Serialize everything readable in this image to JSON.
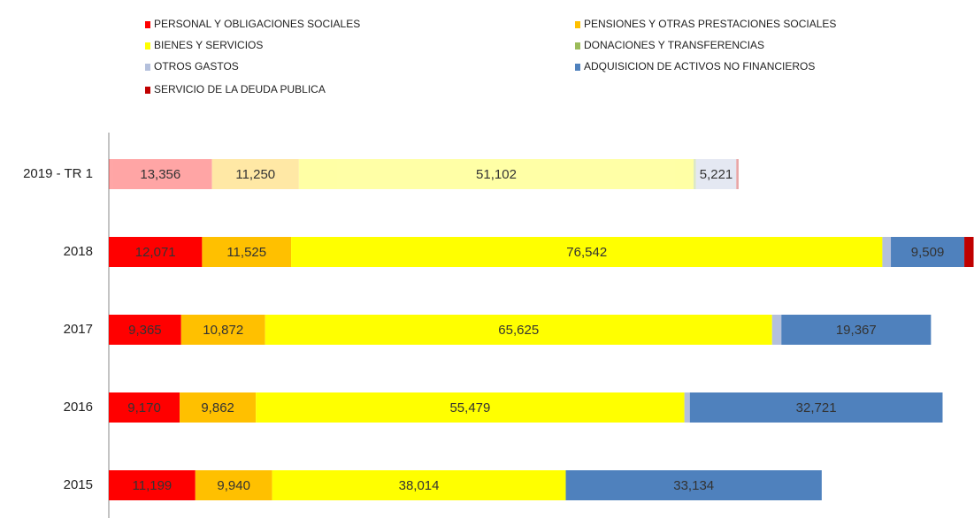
{
  "chart_data": {
    "type": "stacked-bar-horizontal",
    "categories": [
      "2019 - TR 1",
      "2018",
      "2017",
      "2016",
      "2015"
    ],
    "xlim": [
      0,
      112000
    ],
    "series": [
      {
        "name": "PERSONAL Y OBLIGACIONES SOCIALES",
        "color": "#ff0000",
        "values": [
          13356,
          12071,
          9365,
          9170,
          11199
        ],
        "value_labels": [
          "13,356",
          "12,071",
          "9,365",
          "9,170",
          "11,199"
        ]
      },
      {
        "name": "PENSIONES Y OTRAS PRESTACIONES SOCIALES",
        "color": "#ffc000",
        "values": [
          11250,
          11525,
          10872,
          9862,
          9940
        ],
        "value_labels": [
          "11,250",
          "11,525",
          "10,872",
          "9,862",
          "9,940"
        ]
      },
      {
        "name": "BIENES Y SERVICIOS",
        "color": "#ffff00",
        "values": [
          51102,
          76542,
          65625,
          55479,
          38014
        ],
        "value_labels": [
          "51,102",
          "76,542",
          "65,625",
          "55,479",
          "38,014"
        ]
      },
      {
        "name": "DONACIONES Y TRANSFERENCIAS",
        "color": "#9bbb59",
        "values": [
          300,
          0,
          0,
          0,
          0
        ],
        "value_labels": [
          null,
          null,
          null,
          null,
          null
        ]
      },
      {
        "name": "OTROS GASTOS",
        "color": "#b4c0dc",
        "values": [
          5221,
          1100,
          1200,
          700,
          0
        ],
        "value_labels": [
          "5,221",
          null,
          null,
          null,
          null
        ]
      },
      {
        "name": "ADQUISICION DE ACTIVOS NO FINANCIEROS",
        "color": "#4f81bd",
        "values": [
          0,
          9509,
          19367,
          32721,
          33134
        ],
        "value_labels": [
          null,
          "9,509",
          "19,367",
          "32,721",
          "33,134"
        ]
      },
      {
        "name": "SERVICIO DE LA DEUDA PUBLICA",
        "color": "#c00000",
        "values": [
          300,
          1200,
          0,
          0,
          0
        ],
        "value_labels": [
          null,
          null,
          null,
          null,
          null
        ]
      }
    ]
  }
}
